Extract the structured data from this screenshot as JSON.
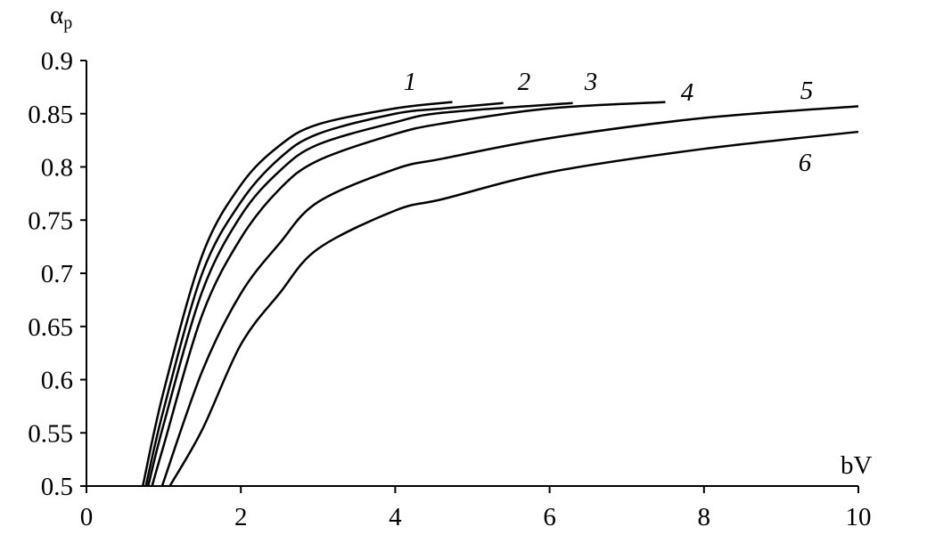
{
  "chart_data": {
    "type": "line",
    "title": "",
    "xlabel": "bV",
    "ylabel": {
      "main": "α",
      "sub": "p"
    },
    "xlim": [
      0,
      10
    ],
    "ylim": [
      0.5,
      0.9
    ],
    "xticks": [
      "0",
      "2",
      "4",
      "6",
      "8",
      "10"
    ],
    "yticks": [
      "0.5",
      "0.55",
      "0.6",
      "0.65",
      "0.7",
      "0.75",
      "0.8",
      "0.85",
      "0.9"
    ],
    "grid": false,
    "line_color": "#000000",
    "series": [
      {
        "name": "1",
        "points": [
          [
            0.73,
            0.5
          ],
          [
            1.0,
            0.589
          ],
          [
            1.5,
            0.717
          ],
          [
            2.0,
            0.783
          ],
          [
            2.5,
            0.82
          ],
          [
            3.0,
            0.84
          ],
          [
            4.0,
            0.855
          ],
          [
            4.74,
            0.861
          ]
        ]
      },
      {
        "name": "2",
        "points": [
          [
            0.77,
            0.5
          ],
          [
            1.0,
            0.572
          ],
          [
            1.5,
            0.7
          ],
          [
            2.0,
            0.767
          ],
          [
            2.5,
            0.808
          ],
          [
            3.0,
            0.831
          ],
          [
            4.0,
            0.85
          ],
          [
            4.63,
            0.855
          ],
          [
            5.4,
            0.86
          ]
        ]
      },
      {
        "name": "3",
        "points": [
          [
            0.8,
            0.5
          ],
          [
            1.0,
            0.558
          ],
          [
            1.5,
            0.683
          ],
          [
            2.0,
            0.754
          ],
          [
            2.5,
            0.796
          ],
          [
            3.0,
            0.821
          ],
          [
            4.0,
            0.842
          ],
          [
            4.63,
            0.851
          ],
          [
            6.3,
            0.86
          ]
        ]
      },
      {
        "name": "4",
        "points": [
          [
            0.85,
            0.5
          ],
          [
            1.0,
            0.538
          ],
          [
            1.5,
            0.661
          ],
          [
            2.0,
            0.733
          ],
          [
            2.5,
            0.779
          ],
          [
            3.0,
            0.806
          ],
          [
            4.0,
            0.831
          ],
          [
            4.63,
            0.841
          ],
          [
            6.0,
            0.855
          ],
          [
            7.5,
            0.861
          ]
        ]
      },
      {
        "name": "5",
        "points": [
          [
            0.98,
            0.5
          ],
          [
            1.5,
            0.608
          ],
          [
            2.0,
            0.681
          ],
          [
            2.5,
            0.728
          ],
          [
            3.0,
            0.767
          ],
          [
            4.0,
            0.798
          ],
          [
            4.63,
            0.808
          ],
          [
            6.0,
            0.827
          ],
          [
            8.0,
            0.846
          ],
          [
            10.0,
            0.857
          ]
        ]
      },
      {
        "name": "6",
        "points": [
          [
            1.08,
            0.5
          ],
          [
            1.5,
            0.553
          ],
          [
            2.0,
            0.633
          ],
          [
            2.5,
            0.681
          ],
          [
            3.0,
            0.723
          ],
          [
            4.0,
            0.759
          ],
          [
            4.63,
            0.77
          ],
          [
            6.0,
            0.795
          ],
          [
            8.0,
            0.817
          ],
          [
            10.0,
            0.833
          ]
        ]
      }
    ]
  }
}
